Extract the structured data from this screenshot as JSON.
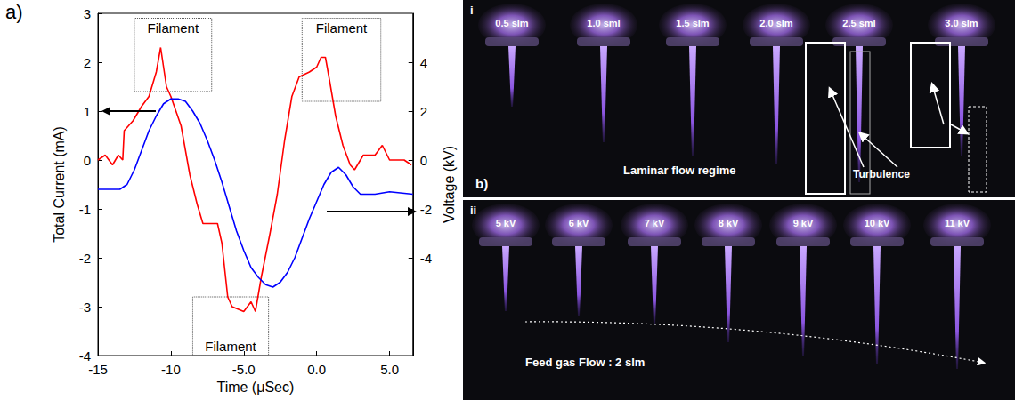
{
  "chart_data": {
    "type": "line",
    "label": "a)",
    "xlabel": "Time (μSec)",
    "ylabel": "Total Current (mA)",
    "y2label": "Voltage (kV)",
    "xlim": [
      -15,
      6.6
    ],
    "xticks": [
      -15,
      -10,
      {
        "value": -5,
        "label": "-5.0"
      },
      {
        "value": 0,
        "label": "0.0"
      },
      {
        "value": 5,
        "label": "5.0"
      }
    ],
    "ylim": [
      -4,
      3
    ],
    "yticks": [
      -4,
      -3,
      -2,
      -1,
      0,
      1,
      2,
      3
    ],
    "y2lim": [
      -8,
      6
    ],
    "y2ticks": [
      -4,
      -2,
      0,
      2,
      4
    ],
    "grid": false,
    "series": [
      {
        "color": "#ff0000",
        "x": [
          -15,
          -14.5,
          -14,
          -13.6,
          -13.3,
          -13.2,
          -12.6,
          -12,
          -11.5,
          -11,
          -10.7,
          -10.3,
          -10,
          -9.3,
          -8.7,
          -8.2,
          -7.8,
          -6.8,
          -6.5,
          -6.1,
          -5.8,
          -5,
          -4.5,
          -4.2,
          -3.8,
          -3.2,
          -2.7,
          -2.2,
          -1.7,
          -1.2,
          -0.5,
          0,
          0.3,
          0.6,
          0.9,
          1.3,
          1.8,
          2.3,
          2.6,
          3.2,
          4,
          4.5,
          5,
          6,
          6.5
        ],
        "values": [
          0,
          0.1,
          -0.1,
          0.1,
          0,
          0.6,
          0.8,
          1.1,
          1.3,
          1.8,
          2.3,
          1.5,
          1.3,
          0.7,
          -0.3,
          -0.9,
          -1.3,
          -1.3,
          -1.7,
          -2.8,
          -3.0,
          -3.1,
          -2.9,
          -3.1,
          -2.4,
          -1.5,
          -0.7,
          0.4,
          1.3,
          1.7,
          1.8,
          1.9,
          2.1,
          2.1,
          1.6,
          0.9,
          0.3,
          -0.1,
          -0.2,
          0.1,
          0.1,
          0.3,
          0,
          0,
          -0.1
        ]
      },
      {
        "color": "#0000ff",
        "axis": "y2",
        "x": [
          -15,
          -13.5,
          -13,
          -12.5,
          -12,
          -11.5,
          -11,
          -10.5,
          -10,
          -9.5,
          -9,
          -8.5,
          -8,
          -7.5,
          -7,
          -6.5,
          -6,
          -5.5,
          -5,
          -4.5,
          -4,
          -3.5,
          -3,
          -2.5,
          -2,
          -1.5,
          -1,
          -0.5,
          0,
          0.5,
          1,
          1.5,
          2,
          2.5,
          3,
          4,
          5,
          6.6
        ],
        "values": [
          -1.2,
          -1.2,
          -1.0,
          -0.4,
          0.4,
          1.2,
          1.8,
          2.3,
          2.5,
          2.5,
          2.4,
          2.0,
          1.5,
          0.8,
          0.0,
          -0.9,
          -1.9,
          -2.9,
          -3.7,
          -4.4,
          -4.8,
          -5.1,
          -5.2,
          -5.0,
          -4.6,
          -4.0,
          -3.2,
          -2.4,
          -1.7,
          -1.0,
          -0.5,
          -0.3,
          -0.6,
          -1.1,
          -1.4,
          -1.4,
          -1.3,
          -1.4
        ]
      }
    ],
    "annotations": [
      {
        "text": "Filament",
        "x": [
          -12.5,
          -7.2
        ],
        "y": [
          1.4,
          2.9
        ]
      },
      {
        "text": "Filament",
        "x": [
          -1,
          4.4
        ],
        "y": [
          1.2,
          2.9
        ]
      },
      {
        "text": "Filament",
        "x": [
          -8.5,
          -3.3
        ],
        "y": [
          -4,
          -2.8
        ]
      }
    ]
  },
  "photographs": {
    "label": "b)",
    "rows": [
      {
        "label": "i",
        "items": [
          "0.5 slm",
          "1.0 sml",
          "1.5 slm",
          "2.0 slm",
          "2.5 sml",
          "3.0 slm"
        ],
        "caption": "Laminar flow regime",
        "annotation": "Turbulence"
      },
      {
        "label": "ii",
        "items": [
          "5 kV",
          "6 kV",
          "7 kV",
          "8 kV",
          "9 kV",
          "10 kV",
          "11 kV"
        ],
        "caption": "Feed gas Flow : 2 slm"
      }
    ]
  }
}
